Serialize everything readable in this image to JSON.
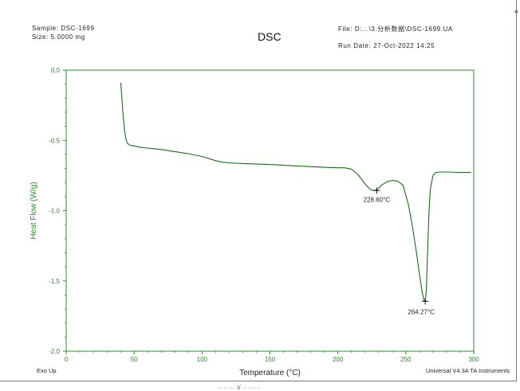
{
  "header": {
    "sample": "Sample: DSC-1699",
    "size": "Size:  5.0000 mg",
    "title": "DSC",
    "file": "File: D:...\\3.分析数据\\DSC-1699.UA",
    "run_date": "Run Date: 27-Oct-2022 14:25"
  },
  "footer": {
    "exo_up": "Exo Up",
    "software": "Universal V4.3A TA Instruments",
    "edge_glyph": "«",
    "bottom_caption": "········ \\/ ········"
  },
  "colors": {
    "curve": "#1a6b1a",
    "axis": "#2e8b2e",
    "ylabel": "#2e8b2e",
    "text": "#222222"
  },
  "chart_data": {
    "type": "line",
    "title": "DSC",
    "xlabel": "Temperature (°C)",
    "ylabel": "Heat Flow (W/g)",
    "xlim": [
      0,
      300
    ],
    "ylim": [
      -2.0,
      0.0
    ],
    "xticks": [
      0,
      50,
      100,
      150,
      200,
      250,
      300
    ],
    "xtick_labels": [
      "0",
      "50",
      "100",
      "150",
      "200",
      "250",
      "300"
    ],
    "yticks": [
      0.0,
      -0.5,
      -1.0,
      -1.5,
      -2.0
    ],
    "ytick_labels": [
      "0.0",
      "-0.5",
      "-1.0",
      "-1.5",
      "-2.0"
    ],
    "grid": false,
    "series": [
      {
        "x": [
          40,
          40.3,
          41,
          42,
          43,
          44,
          45,
          47,
          50,
          55,
          60,
          70,
          80,
          90,
          100,
          110,
          115,
          120,
          130,
          150,
          170,
          190,
          200,
          205,
          210,
          215,
          220,
          224,
          226.8,
          229,
          232,
          236,
          240,
          244,
          248,
          252,
          255,
          258,
          260,
          262,
          263.5,
          264.27,
          265,
          266,
          267,
          268,
          270,
          272,
          275,
          280,
          290,
          298
        ],
        "y": [
          -0.09,
          -0.1,
          -0.2,
          -0.33,
          -0.43,
          -0.49,
          -0.52,
          -0.535,
          -0.54,
          -0.55,
          -0.555,
          -0.565,
          -0.58,
          -0.595,
          -0.615,
          -0.645,
          -0.655,
          -0.66,
          -0.665,
          -0.672,
          -0.682,
          -0.692,
          -0.695,
          -0.695,
          -0.705,
          -0.745,
          -0.81,
          -0.85,
          -0.857,
          -0.85,
          -0.82,
          -0.795,
          -0.785,
          -0.79,
          -0.82,
          -0.96,
          -1.12,
          -1.31,
          -1.45,
          -1.58,
          -1.64,
          -1.645,
          -1.58,
          -1.3,
          -1.02,
          -0.85,
          -0.75,
          -0.73,
          -0.725,
          -0.725,
          -0.728,
          -0.728
        ]
      }
    ],
    "annotations": [
      {
        "label": "228.60°C",
        "x": 228.6,
        "y": -0.857
      },
      {
        "label": "264.27°C",
        "x": 264.27,
        "y": -1.645
      }
    ]
  }
}
